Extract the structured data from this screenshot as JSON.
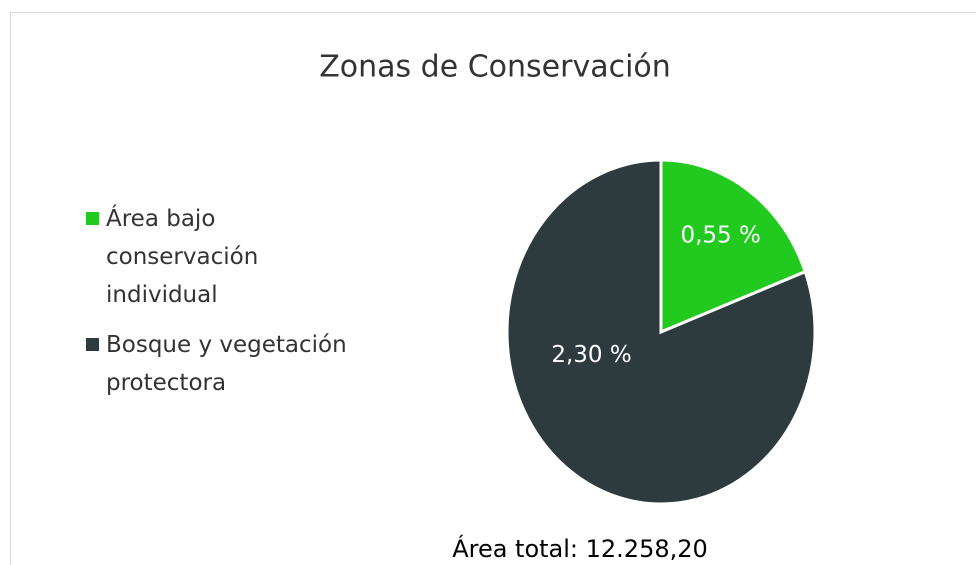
{
  "chart_data": {
    "type": "pie",
    "title": "Zonas de Conservación",
    "categories": [
      "Área bajo conservación individual",
      "Bosque y vegetación protectora"
    ],
    "values": [
      0.55,
      2.3
    ],
    "value_labels": [
      "0,55 %",
      "2,30 %"
    ],
    "colors": [
      "#22c91e",
      "#2d3b3e"
    ],
    "legend": "left",
    "annotation": "Área total: 12.258,20"
  }
}
